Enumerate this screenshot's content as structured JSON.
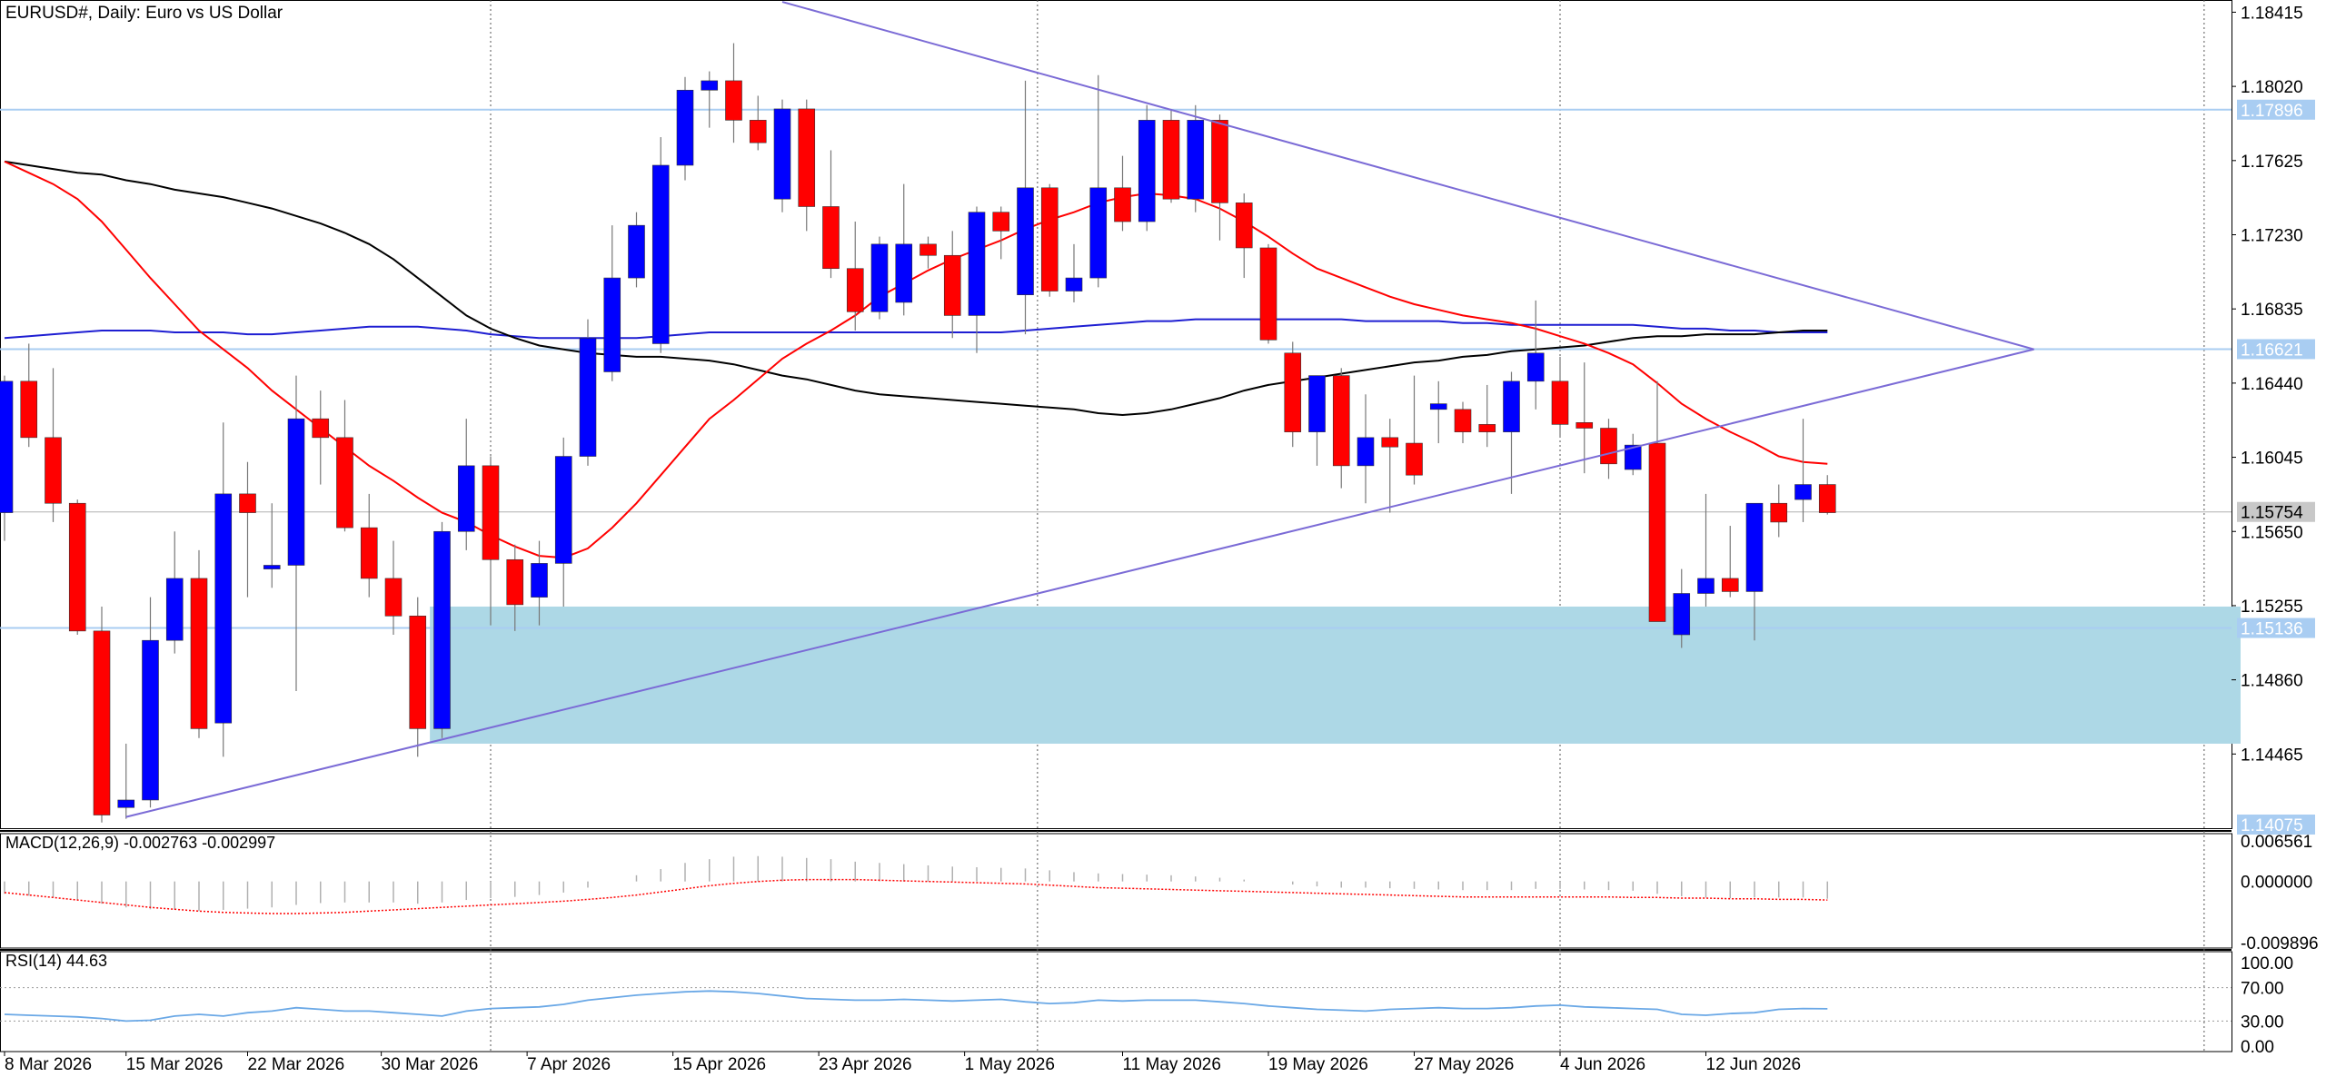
{
  "colors": {
    "bull": "#0000ff",
    "bear": "#ff0000",
    "ma_red": "#ff0000",
    "ma_black": "#000000",
    "ma_blue": "#1e1ed2",
    "trendline": "#7b6bd6",
    "hline": "#a9cdf2",
    "zone": "#add8e6",
    "price_tag": "#a9cdf2",
    "rsi": "#6aa8e6",
    "macd_signal": "#ff0000",
    "macd_hist": "#b0b0b0"
  },
  "header": {
    "title": "EURUSD#, Daily:  Euro vs US Dollar"
  },
  "chart_data": [
    {
      "type": "candlestick",
      "title": "EURUSD#, Daily:  Euro vs US Dollar",
      "ylim": [
        1.1407,
        1.1848
      ],
      "price_axis_labels": [
        "1.18415",
        "1.18020",
        "1.17625",
        "1.17230",
        "1.16835",
        "1.16440",
        "1.16045",
        "1.15650",
        "1.15255",
        "1.14860",
        "1.14465"
      ],
      "price_tags": [
        {
          "value": "1.17896",
          "kind": "hline"
        },
        {
          "value": "1.16621",
          "kind": "hline"
        },
        {
          "value": "1.15754",
          "kind": "current"
        },
        {
          "value": "1.15136",
          "kind": "hline"
        },
        {
          "value": "1.14075",
          "kind": "bottom"
        }
      ],
      "date_labels": [
        "8 Mar 2026",
        "15 Mar 2026",
        "22 Mar 2026",
        "30 Mar 2026",
        "7 Apr 2026",
        "15 Apr 2026",
        "23 Apr 2026",
        "1 May 2026",
        "11 May 2026",
        "19 May 2026",
        "27 May 2026",
        "4 Jun 2026",
        "12 Jun 2026"
      ],
      "candles": [
        {
          "o": 1.1575,
          "h": 1.1648,
          "l": 1.156,
          "c": 1.1645
        },
        {
          "o": 1.1645,
          "h": 1.1665,
          "l": 1.161,
          "c": 1.1615
        },
        {
          "o": 1.1615,
          "h": 1.1652,
          "l": 1.157,
          "c": 1.158
        },
        {
          "o": 1.158,
          "h": 1.1582,
          "l": 1.151,
          "c": 1.1512
        },
        {
          "o": 1.1512,
          "h": 1.1525,
          "l": 1.141,
          "c": 1.1414
        },
        {
          "o": 1.1418,
          "h": 1.1452,
          "l": 1.1412,
          "c": 1.1422
        },
        {
          "o": 1.1422,
          "h": 1.153,
          "l": 1.1418,
          "c": 1.1507
        },
        {
          "o": 1.1507,
          "h": 1.1565,
          "l": 1.15,
          "c": 1.154
        },
        {
          "o": 1.154,
          "h": 1.1555,
          "l": 1.1455,
          "c": 1.146
        },
        {
          "o": 1.1463,
          "h": 1.1623,
          "l": 1.1445,
          "c": 1.1585
        },
        {
          "o": 1.1585,
          "h": 1.1602,
          "l": 1.153,
          "c": 1.1575
        },
        {
          "o": 1.1545,
          "h": 1.158,
          "l": 1.1535,
          "c": 1.1547
        },
        {
          "o": 1.1547,
          "h": 1.1648,
          "l": 1.148,
          "c": 1.1625
        },
        {
          "o": 1.1625,
          "h": 1.164,
          "l": 1.159,
          "c": 1.1615
        },
        {
          "o": 1.1615,
          "h": 1.1635,
          "l": 1.1565,
          "c": 1.1567
        },
        {
          "o": 1.1567,
          "h": 1.1585,
          "l": 1.153,
          "c": 1.154
        },
        {
          "o": 1.154,
          "h": 1.156,
          "l": 1.151,
          "c": 1.152
        },
        {
          "o": 1.152,
          "h": 1.153,
          "l": 1.1445,
          "c": 1.146
        },
        {
          "o": 1.146,
          "h": 1.157,
          "l": 1.1455,
          "c": 1.1565
        },
        {
          "o": 1.1565,
          "h": 1.1625,
          "l": 1.1555,
          "c": 1.16
        },
        {
          "o": 1.16,
          "h": 1.1605,
          "l": 1.1515,
          "c": 1.155
        },
        {
          "o": 1.155,
          "h": 1.1558,
          "l": 1.1512,
          "c": 1.1526
        },
        {
          "o": 1.153,
          "h": 1.156,
          "l": 1.1515,
          "c": 1.1548
        },
        {
          "o": 1.1548,
          "h": 1.1615,
          "l": 1.1525,
          "c": 1.1605
        },
        {
          "o": 1.1605,
          "h": 1.1678,
          "l": 1.16,
          "c": 1.1668
        },
        {
          "o": 1.165,
          "h": 1.1728,
          "l": 1.1645,
          "c": 1.17
        },
        {
          "o": 1.17,
          "h": 1.1735,
          "l": 1.1695,
          "c": 1.1728
        },
        {
          "o": 1.1665,
          "h": 1.1775,
          "l": 1.166,
          "c": 1.176
        },
        {
          "o": 1.176,
          "h": 1.1807,
          "l": 1.1752,
          "c": 1.18
        },
        {
          "o": 1.18,
          "h": 1.181,
          "l": 1.178,
          "c": 1.1805
        },
        {
          "o": 1.1805,
          "h": 1.1825,
          "l": 1.1772,
          "c": 1.1784
        },
        {
          "o": 1.1784,
          "h": 1.1797,
          "l": 1.1768,
          "c": 1.1772
        },
        {
          "o": 1.1742,
          "h": 1.1795,
          "l": 1.1735,
          "c": 1.179
        },
        {
          "o": 1.179,
          "h": 1.1795,
          "l": 1.1725,
          "c": 1.1738
        },
        {
          "o": 1.1738,
          "h": 1.1768,
          "l": 1.17,
          "c": 1.1705
        },
        {
          "o": 1.1705,
          "h": 1.173,
          "l": 1.1672,
          "c": 1.1682
        },
        {
          "o": 1.1682,
          "h": 1.1722,
          "l": 1.1678,
          "c": 1.1718
        },
        {
          "o": 1.1687,
          "h": 1.175,
          "l": 1.168,
          "c": 1.1718
        },
        {
          "o": 1.1718,
          "h": 1.1722,
          "l": 1.1705,
          "c": 1.1712
        },
        {
          "o": 1.1712,
          "h": 1.1725,
          "l": 1.1668,
          "c": 1.168
        },
        {
          "o": 1.168,
          "h": 1.1738,
          "l": 1.166,
          "c": 1.1735
        },
        {
          "o": 1.1735,
          "h": 1.1738,
          "l": 1.171,
          "c": 1.1725
        },
        {
          "o": 1.1691,
          "h": 1.1805,
          "l": 1.167,
          "c": 1.1748
        },
        {
          "o": 1.1748,
          "h": 1.175,
          "l": 1.169,
          "c": 1.1693
        },
        {
          "o": 1.1693,
          "h": 1.1718,
          "l": 1.1687,
          "c": 1.17
        },
        {
          "o": 1.17,
          "h": 1.1808,
          "l": 1.1695,
          "c": 1.1748
        },
        {
          "o": 1.1748,
          "h": 1.1765,
          "l": 1.1725,
          "c": 1.173
        },
        {
          "o": 1.173,
          "h": 1.1792,
          "l": 1.1725,
          "c": 1.1784
        },
        {
          "o": 1.1784,
          "h": 1.179,
          "l": 1.174,
          "c": 1.1742
        },
        {
          "o": 1.1742,
          "h": 1.1792,
          "l": 1.1735,
          "c": 1.1784
        },
        {
          "o": 1.1784,
          "h": 1.1787,
          "l": 1.172,
          "c": 1.174
        },
        {
          "o": 1.174,
          "h": 1.1745,
          "l": 1.17,
          "c": 1.1716
        },
        {
          "o": 1.1716,
          "h": 1.1718,
          "l": 1.1665,
          "c": 1.1667
        },
        {
          "o": 1.166,
          "h": 1.1666,
          "l": 1.161,
          "c": 1.1618
        },
        {
          "o": 1.1618,
          "h": 1.1648,
          "l": 1.16,
          "c": 1.1648
        },
        {
          "o": 1.1648,
          "h": 1.1652,
          "l": 1.1588,
          "c": 1.16
        },
        {
          "o": 1.16,
          "h": 1.1638,
          "l": 1.158,
          "c": 1.1615
        },
        {
          "o": 1.1615,
          "h": 1.1625,
          "l": 1.1575,
          "c": 1.161
        },
        {
          "o": 1.1612,
          "h": 1.1648,
          "l": 1.159,
          "c": 1.1595
        },
        {
          "o": 1.163,
          "h": 1.1645,
          "l": 1.1612,
          "c": 1.1633
        },
        {
          "o": 1.163,
          "h": 1.1634,
          "l": 1.1612,
          "c": 1.1618
        },
        {
          "o": 1.1622,
          "h": 1.1643,
          "l": 1.161,
          "c": 1.1618
        },
        {
          "o": 1.1618,
          "h": 1.165,
          "l": 1.1585,
          "c": 1.1645
        },
        {
          "o": 1.1645,
          "h": 1.1688,
          "l": 1.163,
          "c": 1.166
        },
        {
          "o": 1.1645,
          "h": 1.1658,
          "l": 1.1615,
          "c": 1.1622
        },
        {
          "o": 1.1623,
          "h": 1.1655,
          "l": 1.1596,
          "c": 1.162
        },
        {
          "o": 1.162,
          "h": 1.1625,
          "l": 1.1593,
          "c": 1.1601
        },
        {
          "o": 1.1598,
          "h": 1.1617,
          "l": 1.1595,
          "c": 1.1611
        },
        {
          "o": 1.1612,
          "h": 1.1645,
          "l": 1.1517,
          "c": 1.1517
        },
        {
          "o": 1.151,
          "h": 1.1545,
          "l": 1.1503,
          "c": 1.1532
        },
        {
          "o": 1.1532,
          "h": 1.1585,
          "l": 1.1525,
          "c": 1.154
        },
        {
          "o": 1.154,
          "h": 1.1568,
          "l": 1.153,
          "c": 1.1533
        },
        {
          "o": 1.1533,
          "h": 1.158,
          "l": 1.1507,
          "c": 1.158
        },
        {
          "o": 1.158,
          "h": 1.159,
          "l": 1.1562,
          "c": 1.157
        },
        {
          "o": 1.1582,
          "h": 1.1625,
          "l": 1.157,
          "c": 1.159
        },
        {
          "o": 1.159,
          "h": 1.1595,
          "l": 1.1574,
          "c": 1.1575
        }
      ],
      "indicators": {
        "ma_red": [
          1.1762,
          1.1756,
          1.175,
          1.1742,
          1.173,
          1.1715,
          1.17,
          1.1686,
          1.1672,
          1.1662,
          1.1652,
          1.164,
          1.163,
          1.162,
          1.161,
          1.16,
          1.1592,
          1.1583,
          1.1575,
          1.157,
          1.1563,
          1.1557,
          1.1552,
          1.1551,
          1.1556,
          1.1567,
          1.158,
          1.1595,
          1.161,
          1.1625,
          1.1635,
          1.1646,
          1.1657,
          1.1665,
          1.1672,
          1.168,
          1.169,
          1.1697,
          1.1704,
          1.171,
          1.1715,
          1.172,
          1.1726,
          1.1731,
          1.1735,
          1.174,
          1.1743,
          1.1745,
          1.1744,
          1.1742,
          1.1737,
          1.173,
          1.1722,
          1.1713,
          1.1705,
          1.17,
          1.1695,
          1.169,
          1.1686,
          1.1683,
          1.168,
          1.1678,
          1.1676,
          1.1673,
          1.1669,
          1.1665,
          1.166,
          1.1654,
          1.1644,
          1.1633,
          1.1625,
          1.1618,
          1.1612,
          1.1605,
          1.1602,
          1.1601
        ],
        "ma_black": [
          1.1762,
          1.176,
          1.1758,
          1.1756,
          1.1755,
          1.1752,
          1.175,
          1.1747,
          1.1745,
          1.1743,
          1.174,
          1.1737,
          1.1733,
          1.1729,
          1.1724,
          1.1718,
          1.171,
          1.17,
          1.169,
          1.168,
          1.1673,
          1.1668,
          1.1664,
          1.1662,
          1.166,
          1.1659,
          1.1658,
          1.1658,
          1.1657,
          1.1656,
          1.1654,
          1.1651,
          1.1648,
          1.1646,
          1.1643,
          1.164,
          1.1638,
          1.1637,
          1.1636,
          1.1635,
          1.1634,
          1.1633,
          1.1632,
          1.1631,
          1.163,
          1.1628,
          1.1627,
          1.1628,
          1.163,
          1.1633,
          1.1636,
          1.164,
          1.1643,
          1.1645,
          1.1647,
          1.1649,
          1.1651,
          1.1653,
          1.1655,
          1.1656,
          1.1658,
          1.1659,
          1.1661,
          1.1662,
          1.1663,
          1.1664,
          1.1666,
          1.1668,
          1.1669,
          1.1669,
          1.167,
          1.167,
          1.167,
          1.1671,
          1.1672,
          1.1672
        ],
        "ma_blue": [
          1.1668,
          1.1669,
          1.167,
          1.1671,
          1.1672,
          1.1672,
          1.1672,
          1.1671,
          1.1671,
          1.1671,
          1.167,
          1.167,
          1.1671,
          1.1672,
          1.1673,
          1.1674,
          1.1674,
          1.1674,
          1.1673,
          1.1672,
          1.167,
          1.1669,
          1.1668,
          1.1668,
          1.1668,
          1.1668,
          1.1668,
          1.1669,
          1.167,
          1.1671,
          1.1671,
          1.1671,
          1.1671,
          1.1671,
          1.1671,
          1.1671,
          1.1671,
          1.1671,
          1.1671,
          1.1671,
          1.1671,
          1.1671,
          1.1672,
          1.1673,
          1.1674,
          1.1675,
          1.1676,
          1.1677,
          1.1677,
          1.1678,
          1.1678,
          1.1678,
          1.1678,
          1.1678,
          1.1678,
          1.1678,
          1.1677,
          1.1677,
          1.1677,
          1.1677,
          1.1676,
          1.1676,
          1.1675,
          1.1675,
          1.1675,
          1.1675,
          1.1675,
          1.1675,
          1.1674,
          1.1673,
          1.1673,
          1.1672,
          1.1672,
          1.1671,
          1.1671,
          1.1671
        ]
      },
      "zone": {
        "price_top": 1.1525,
        "price_bottom": 1.1452,
        "from_index": 17.5,
        "to_index": 92
      },
      "trendlines": [
        {
          "from_index": 32,
          "from_price": 1.1847,
          "to_index": 83.5,
          "to_price": 1.1662
        },
        {
          "from_index": 5,
          "from_price": 1.1413,
          "to_index": 83.5,
          "to_price": 1.1662
        }
      ],
      "vertical_separators_index": [
        20,
        42.5,
        64,
        90.5
      ]
    },
    {
      "type": "line",
      "title": "MACD(12,26,9) -0.002763 -0.002997",
      "axis_labels": [
        "0.006561",
        "0.000000",
        "-0.009896"
      ],
      "ylim": [
        -0.009896,
        0.006561
      ],
      "histogram": [
        -0.002,
        -0.0023,
        -0.0026,
        -0.003,
        -0.0036,
        -0.0042,
        -0.0045,
        -0.0046,
        -0.0048,
        -0.0046,
        -0.0044,
        -0.0042,
        -0.0038,
        -0.0035,
        -0.0034,
        -0.0034,
        -0.0034,
        -0.0036,
        -0.0034,
        -0.003,
        -0.0027,
        -0.0025,
        -0.0022,
        -0.0018,
        -0.001,
        0.0,
        0.001,
        0.002,
        0.003,
        0.0036,
        0.004,
        0.0041,
        0.004,
        0.0038,
        0.0036,
        0.0032,
        0.003,
        0.0028,
        0.0026,
        0.0024,
        0.0023,
        0.0022,
        0.0021,
        0.0018,
        0.0015,
        0.0013,
        0.0012,
        0.0011,
        0.001,
        0.0008,
        0.0006,
        0.0003,
        0.0,
        -0.0005,
        -0.0008,
        -0.001,
        -0.001,
        -0.0011,
        -0.0012,
        -0.0013,
        -0.0014,
        -0.0014,
        -0.0014,
        -0.0012,
        -0.0012,
        -0.0013,
        -0.0014,
        -0.0015,
        -0.002,
        -0.0024,
        -0.0026,
        -0.0027,
        -0.0026,
        -0.0026,
        -0.0026,
        -0.0028
      ],
      "signal": [
        -0.0018,
        -0.0022,
        -0.0026,
        -0.003,
        -0.0034,
        -0.0038,
        -0.0042,
        -0.0045,
        -0.0048,
        -0.005,
        -0.0051,
        -0.0052,
        -0.0052,
        -0.0051,
        -0.005,
        -0.0048,
        -0.0046,
        -0.0044,
        -0.0042,
        -0.004,
        -0.0038,
        -0.0036,
        -0.0034,
        -0.0032,
        -0.0029,
        -0.0026,
        -0.0022,
        -0.0017,
        -0.0012,
        -0.0007,
        -0.0003,
        0.0,
        0.0002,
        0.0003,
        0.0003,
        0.0003,
        0.0002,
        0.0001,
        0.0,
        -0.0001,
        -0.0002,
        -0.0003,
        -0.0004,
        -0.0006,
        -0.0008,
        -0.001,
        -0.0011,
        -0.0012,
        -0.0013,
        -0.0014,
        -0.0015,
        -0.0016,
        -0.0017,
        -0.0018,
        -0.0019,
        -0.002,
        -0.0021,
        -0.0022,
        -0.0023,
        -0.0024,
        -0.0025,
        -0.0025,
        -0.0025,
        -0.0025,
        -0.0025,
        -0.0025,
        -0.0025,
        -0.0026,
        -0.0026,
        -0.0027,
        -0.0027,
        -0.0028,
        -0.0028,
        -0.0029,
        -0.0029,
        -0.003
      ]
    },
    {
      "type": "line",
      "title": "RSI(14) 44.63",
      "axis_labels": [
        "100.00",
        "70.00",
        "30.00",
        "0.00"
      ],
      "ylim": [
        0,
        100
      ],
      "levels": [
        70,
        30
      ],
      "values": [
        38,
        37,
        36,
        35,
        33,
        30,
        31,
        36,
        38,
        36,
        40,
        42,
        46,
        44,
        42,
        42,
        40,
        38,
        36,
        42,
        45,
        46,
        47,
        50,
        55,
        58,
        61,
        63,
        65,
        66,
        65,
        63,
        60,
        57,
        56,
        55,
        55,
        56,
        55,
        54,
        55,
        56,
        53,
        51,
        52,
        55,
        54,
        55,
        55,
        55,
        53,
        51,
        48,
        46,
        44,
        43,
        42,
        44,
        45,
        46,
        45,
        45,
        46,
        48,
        49,
        47,
        46,
        45,
        44,
        38,
        37,
        39,
        40,
        44,
        45,
        44.63
      ]
    }
  ]
}
